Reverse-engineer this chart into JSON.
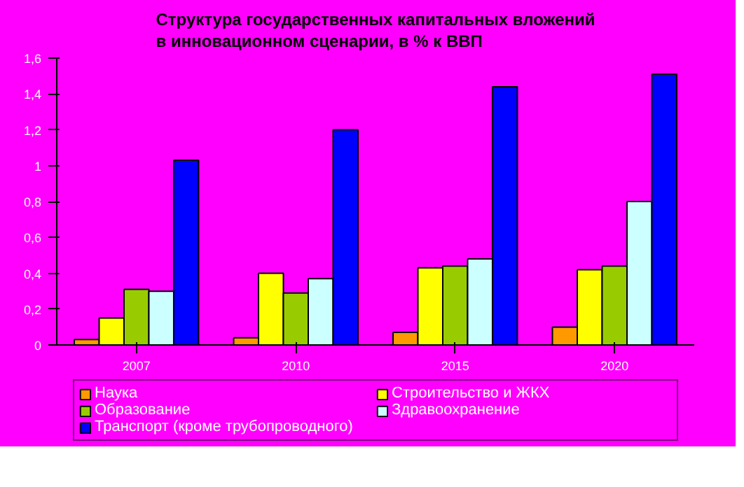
{
  "chart_data": {
    "type": "bar",
    "title": "Структура государственных капитальных вложений\nв инновационном сценарии, в % к ВВП",
    "categories": [
      "2007",
      "2010",
      "2015",
      "2020"
    ],
    "series": [
      {
        "name": "Наука",
        "color": "#ff9900",
        "values": [
          0.03,
          0.04,
          0.07,
          0.1
        ]
      },
      {
        "name": "Строительство и ЖКХ",
        "color": "#ffff00",
        "values": [
          0.15,
          0.4,
          0.43,
          0.42
        ]
      },
      {
        "name": "Образование",
        "color": "#99cc00",
        "values": [
          0.31,
          0.29,
          0.44,
          0.44
        ]
      },
      {
        "name": "Здравоохранение",
        "color": "#ccffff",
        "values": [
          0.3,
          0.37,
          0.48,
          0.8
        ]
      },
      {
        "name": "Транспорт (кроме трубопроводного)",
        "color": "#0000ff",
        "values": [
          1.03,
          1.2,
          1.44,
          1.51
        ]
      }
    ],
    "ylim": [
      0,
      1.6
    ],
    "yticks": [
      0,
      {
        "value": 0.2,
        "label": "0,2"
      },
      {
        "value": 0.4,
        "label": "0,4"
      },
      {
        "value": 0.6,
        "label": "0,6"
      },
      {
        "value": 0.8,
        "label": "0,8"
      },
      1,
      {
        "value": 1.2,
        "label": "1,2"
      },
      {
        "value": 1.4,
        "label": "1,4"
      },
      {
        "value": 1.6,
        "label": "1,6"
      }
    ],
    "grid": false,
    "legend": "bottom"
  }
}
